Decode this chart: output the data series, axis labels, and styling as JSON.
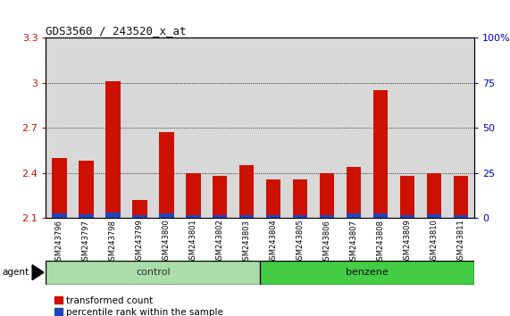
{
  "title": "GDS3560 / 243520_x_at",
  "samples": [
    "GSM243796",
    "GSM243797",
    "GSM243798",
    "GSM243799",
    "GSM243800",
    "GSM243801",
    "GSM243802",
    "GSM243803",
    "GSM243804",
    "GSM243805",
    "GSM243806",
    "GSM243807",
    "GSM243808",
    "GSM243809",
    "GSM243810",
    "GSM243811"
  ],
  "red_values": [
    2.5,
    2.48,
    3.01,
    2.22,
    2.67,
    2.4,
    2.38,
    2.45,
    2.36,
    2.36,
    2.4,
    2.44,
    2.95,
    2.38,
    2.4,
    2.38
  ],
  "blue_values": [
    0.03,
    0.025,
    0.035,
    0.02,
    0.03,
    0.022,
    0.022,
    0.022,
    0.02,
    0.02,
    0.022,
    0.03,
    0.03,
    0.02,
    0.025,
    0.02
  ],
  "ymin": 2.1,
  "ymax": 3.3,
  "yticks": [
    2.1,
    2.4,
    2.7,
    3.0,
    3.3
  ],
  "ytick_labels": [
    "2.1",
    "2.4",
    "2.7",
    "3",
    "3.3"
  ],
  "right_ytick_labels": [
    "0",
    "25",
    "50",
    "75",
    "100%"
  ],
  "control_label": "control",
  "benzene_label": "benzene",
  "agent_label": "agent",
  "legend_red": "transformed count",
  "legend_blue": "percentile rank within the sample",
  "red_color": "#CC1100",
  "blue_color": "#2244BB",
  "control_color": "#AADDAA",
  "benzene_color": "#44CC44",
  "bar_width": 0.55
}
